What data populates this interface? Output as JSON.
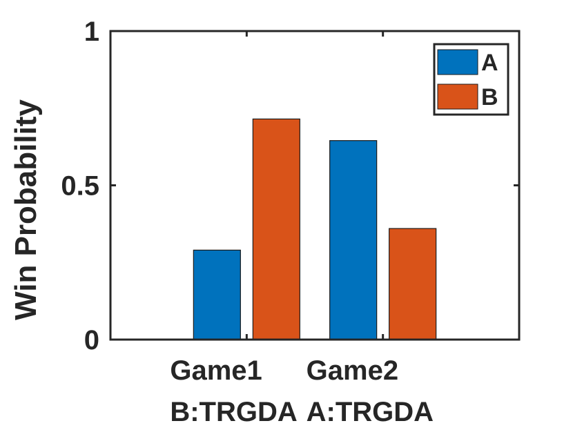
{
  "chart_data": {
    "type": "bar",
    "title": "",
    "xlabel": "",
    "ylabel": "Win Probability",
    "ylim": [
      0,
      1
    ],
    "yticks": [
      {
        "value": 0,
        "label": "0"
      },
      {
        "value": 0.5,
        "label": "0.5"
      },
      {
        "value": 1,
        "label": "1"
      }
    ],
    "categories": [
      {
        "line1": "Game1",
        "line2": "B:TRGDA"
      },
      {
        "line1": "Game2",
        "line2": "A:TRGDA"
      }
    ],
    "series": [
      {
        "name": "A",
        "color": "#0072bd",
        "values": [
          0.29,
          0.645
        ]
      },
      {
        "name": "B",
        "color": "#d95319",
        "values": [
          0.715,
          0.36
        ]
      }
    ],
    "legend": {
      "location": "top-right"
    },
    "grid": false
  }
}
